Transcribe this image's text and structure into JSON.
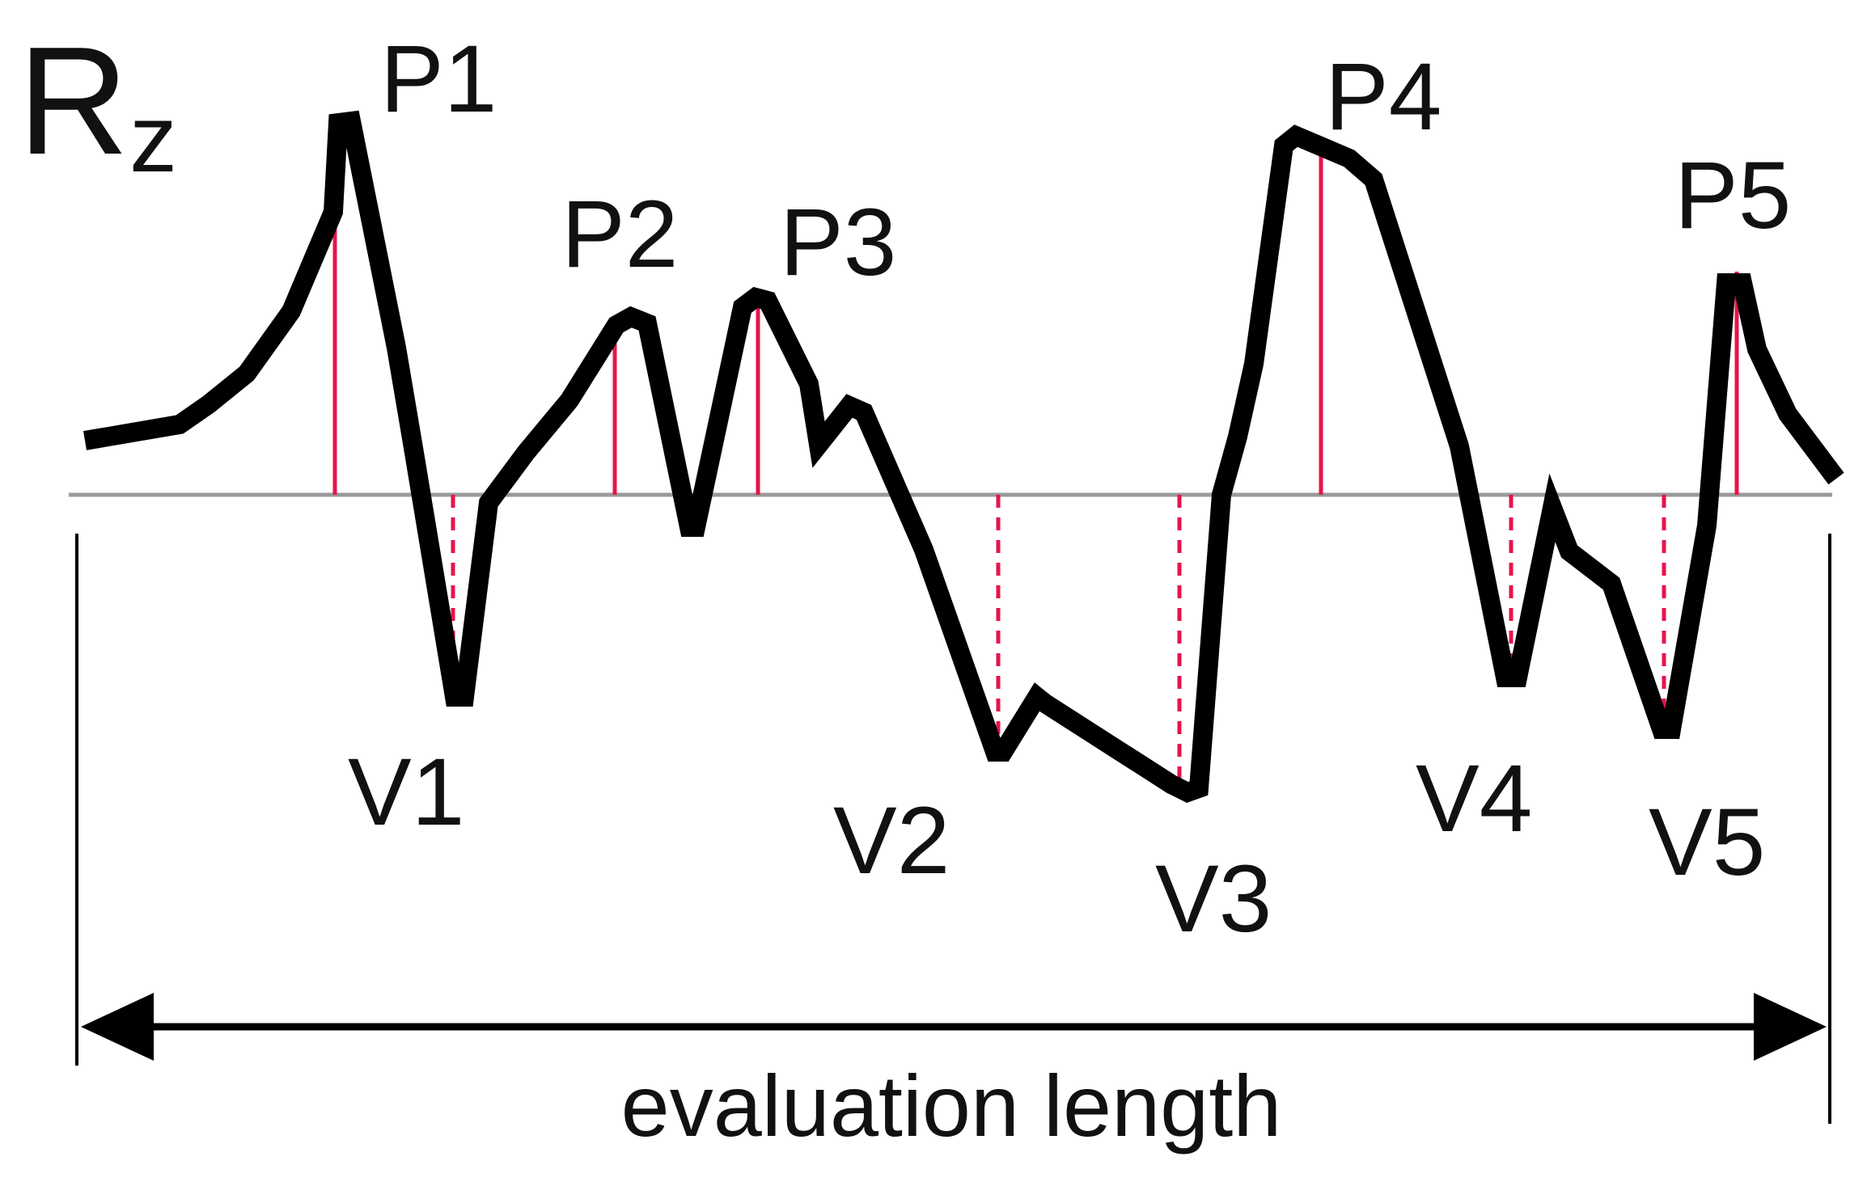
{
  "title": {
    "main": "R",
    "subscript": "z"
  },
  "caption": "evaluation length",
  "colors": {
    "profile": "#000000",
    "marker": "#e8134b",
    "mean_line": "#9a9a9a",
    "text": "#111111"
  },
  "peaks": [
    {
      "label": "P1"
    },
    {
      "label": "P2"
    },
    {
      "label": "P3"
    },
    {
      "label": "P4"
    },
    {
      "label": "P5"
    }
  ],
  "valleys": [
    {
      "label": "V1"
    },
    {
      "label": "V2"
    },
    {
      "label": "V3"
    },
    {
      "label": "V4"
    },
    {
      "label": "V5"
    }
  ]
}
